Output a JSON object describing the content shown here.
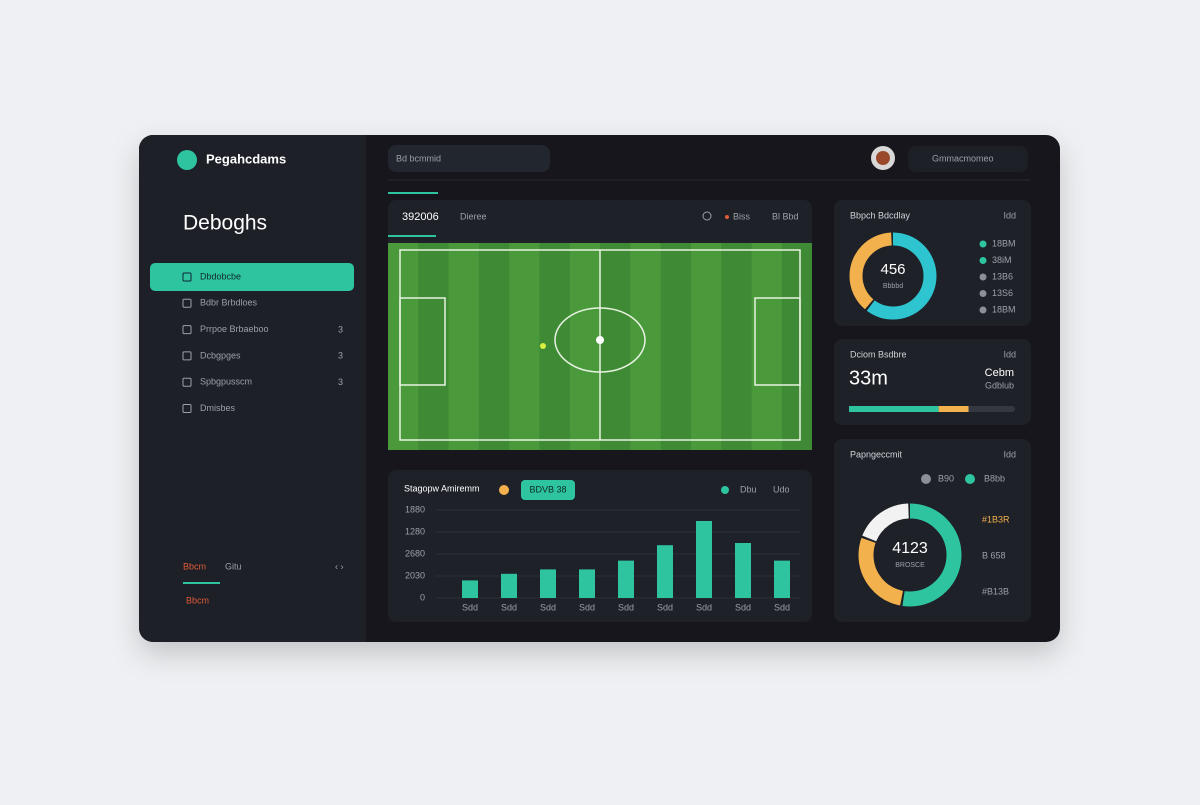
{
  "sidebar": {
    "brand": "Pegahcdams",
    "title": "Deboghs",
    "nav": [
      "Dbdobcbe",
      "Bdbr Brbdloes",
      "Prrpoe Brbaeboo",
      "Dcbgpges",
      "Spbgpusscm",
      "Dmisbes"
    ],
    "nav_badges": [
      "3",
      "3",
      "3"
    ],
    "footer": [
      "Bbcm",
      "Gitu",
      "Bbcm"
    ]
  },
  "topbar": {
    "search": "Bd bcmmid",
    "user": "Gmmacmomeo"
  },
  "video": {
    "title": "392006",
    "subtitle": "Dieree",
    "status": "Biss",
    "action": "Bl Bbd"
  },
  "chart_data": [
    {
      "type": "bar",
      "title": "Stagopw Amiremm",
      "button": "BDVB 38",
      "extra": "Udo",
      "categories": [
        "Sdd",
        "Sdd",
        "Sdd",
        "Sdd",
        "Sdd",
        "Sdd",
        "Sdd",
        "Sdd",
        "Sdd"
      ],
      "series": [
        {
          "name": "Dbu",
          "color": "#2ec4a0",
          "values": [
            0.8,
            1.1,
            1.3,
            1.3,
            1.7,
            2.4,
            3.5,
            2.5,
            1.7
          ]
        }
      ],
      "ylim": [
        0,
        4
      ],
      "yticks": [
        {
          "value": 0,
          "label": "0"
        },
        {
          "value": 1,
          "label": "2030"
        },
        {
          "value": 2,
          "label": "2680"
        },
        {
          "value": 3,
          "label": "1280"
        },
        {
          "value": 4,
          "label": "1880"
        }
      ],
      "grid": true
    },
    {
      "type": "donut",
      "title": "Bbpch Bdcdlay",
      "corner": "Idd",
      "center_label": "456",
      "center_sub": "Bbbbd",
      "values": [
        58,
        37
      ],
      "colors": [
        "#2ec4d0",
        "#f2b14c"
      ],
      "legend": [
        {
          "label": "18BM",
          "color": "#2ec4a0"
        },
        {
          "label": "38iM",
          "color": "#2ec4a0"
        },
        {
          "label": "13B6",
          "color": "#8a8f98"
        },
        {
          "label": "13S6",
          "color": "#8a8f98"
        },
        {
          "label": "18BM",
          "color": "#8a8f98"
        }
      ]
    },
    {
      "type": "progress",
      "title": "Dciom Bsdbre",
      "corner": "Idd",
      "value_text": "33m",
      "side_title": "Cebm",
      "side_sub": "Gdblub",
      "xlim": [
        0,
        100
      ],
      "series": [
        {
          "color": "#2ec4a0",
          "values": [
            54
          ]
        },
        {
          "color": "#f2b14c",
          "values": [
            18
          ]
        }
      ]
    },
    {
      "type": "donut",
      "title": "Papngeccmit",
      "corner": "Idd",
      "center_label": "4123",
      "center_sub": "BROSCE",
      "values": [
        53,
        28,
        19
      ],
      "colors": [
        "#2ec4a0",
        "#f2b14c",
        "#f2f2f2"
      ],
      "legend": [
        {
          "label": "B90",
          "color": "#8a8f98"
        },
        {
          "label": "B8bb",
          "color": "#2ec4a0"
        }
      ],
      "side_labels": [
        "#1B3R",
        "B 658",
        "#B13B"
      ]
    }
  ]
}
